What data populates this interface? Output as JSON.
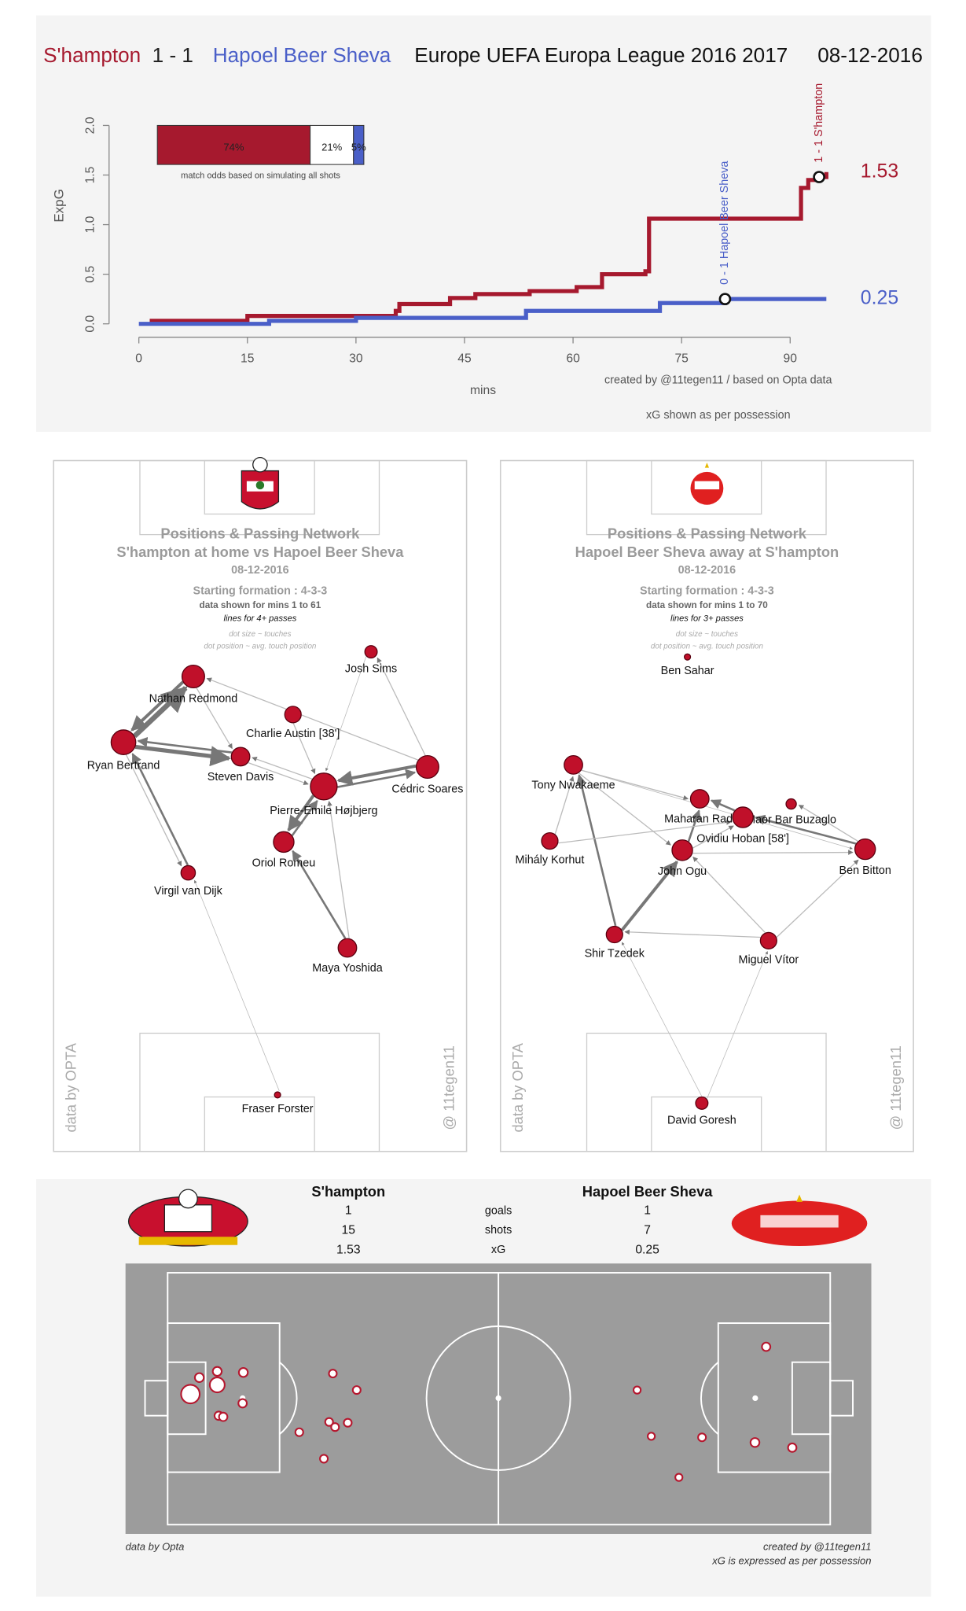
{
  "chart_data": [
    {
      "type": "line",
      "step": true,
      "score": "1  -  1",
      "competition": "Europe UEFA Europa League 2016 2017",
      "date": "08-12-2016",
      "y_label": "ExpG",
      "x_label": "mins",
      "xlim": [
        0,
        90
      ],
      "xticks": [
        0,
        15,
        30,
        45,
        60,
        75,
        90
      ],
      "ylim": [
        0,
        2
      ],
      "yticks": [
        {
          "value": 0,
          "label": "0.0"
        },
        {
          "value": 0.5,
          "label": "0.5"
        },
        {
          "value": 1,
          "label": "1.0"
        },
        {
          "value": 1.5,
          "label": "1.5"
        },
        {
          "value": 2,
          "label": "2.0"
        }
      ],
      "series": [
        {
          "name": "S'hampton",
          "color": "#a6192e",
          "x": [
            1.5,
            15,
            35.5,
            36,
            43,
            46.5,
            54,
            60.5,
            64,
            70,
            70.5,
            91.5,
            92.5,
            94,
            95
          ],
          "values": [
            0.03,
            0.08,
            0.13,
            0.2,
            0.26,
            0.3,
            0.33,
            0.37,
            0.5,
            0.53,
            1.06,
            1.37,
            1.45,
            1.48,
            1.53
          ]
        },
        {
          "name": "Hapoel Beer Sheva",
          "color": "#4a5fc8",
          "x": [
            0,
            18,
            30,
            53.5,
            72,
            81,
            95
          ],
          "values": [
            0,
            0.03,
            0.06,
            0.13,
            0.21,
            0.25,
            0.25
          ]
        }
      ],
      "annotations": [
        {
          "text": "0 - 1 Hapoel Beer Sheva",
          "x": 81,
          "y": 0.25,
          "color": "#4a5fc8"
        },
        {
          "text": "1 - 1 S'hampton",
          "x": 94,
          "y": 1.48,
          "color": "#a6192e"
        }
      ],
      "credit": "created by @11tegen11   /   based on Opta data",
      "note": "xG shown as per possession"
    },
    {
      "type": "bar",
      "stacked": true,
      "xlim": [
        0,
        100
      ],
      "values": [
        74,
        21,
        5
      ],
      "value_labels": [
        "74%",
        "21%",
        "5%"
      ],
      "colors": [
        "#a6192e",
        "#ffffff",
        "#4a5fc8"
      ],
      "caption": "match odds based on simulating all shots"
    },
    {
      "type": "scatter",
      "series": [
        {
          "color": "#b5172e",
          "x": [
            8.7,
            9.9,
            12.3,
            12.3,
            15.8,
            15.7,
            12.5,
            13.1,
            27.8,
            31.0,
            23.3,
            27.3,
            28.1,
            29.8,
            26.6
          ],
          "values": [
            48.3,
            42.2,
            39.9,
            44.9,
            40.3,
            51.7,
            56.3,
            56.7,
            40.7,
            46.8,
            62.4,
            58.6,
            60.5,
            58.9,
            72.2
          ],
          "sizes": [
            0.45,
            0.05,
            0.05,
            0.25,
            0.05,
            0.04,
            0.04,
            0.04,
            0.03,
            0.03,
            0.03,
            0.03,
            0.03,
            0.03,
            0.03
          ]
        },
        {
          "color": "#b5172e",
          "x": [
            85.9,
            68.6,
            70.5,
            77.3,
            84.4,
            89.4,
            74.2
          ],
          "values": [
            30.8,
            46.8,
            63.9,
            64.3,
            66.2,
            68.1,
            79.1
          ],
          "sizes": [
            0.04,
            0.02,
            0.02,
            0.03,
            0.05,
            0.04,
            0.02
          ]
        }
      ]
    }
  ],
  "passing_networks": [
    {
      "title": "Positions & Passing Network",
      "subtitle": "S'hampton at home vs Hapoel Beer Sheva",
      "date": "08-12-2016",
      "formation": "Starting formation : 4-3-3",
      "mins": "data shown for mins 1 to 61",
      "lines": "lines for 4+ passes",
      "legend": [
        "dot size ~ touches",
        "dot position ~ avg. touch position"
      ],
      "source": "data by OPTA",
      "credit": "@ 11tegen11",
      "players": [
        "Nathan Redmond",
        "Ryan Bertrand",
        "Charlie Austin [38']",
        "Steven Davis",
        "Pierre-Emile Højbjerg",
        "Cédric Soares",
        "Josh Sims",
        "Oriol Romeu",
        "Virgil van Dijk",
        "Maya Yoshida",
        "Fraser Forster"
      ]
    },
    {
      "title": "Positions & Passing Network",
      "subtitle": "Hapoel Beer Sheva  away at  S'hampton",
      "date": "08-12-2016",
      "formation": "Starting formation : 4-3-3",
      "mins": "data shown for mins 1 to 70",
      "lines": "lines for 3+ passes",
      "legend": [
        "dot size ~ touches",
        "dot position ~ avg. touch position"
      ],
      "source": "data by OPTA",
      "credit": "@ 11tegen11",
      "players": [
        "Ben Sahar",
        "Tony Nwakaeme",
        "Maharan Radi",
        "Maor Bar Buzaglo",
        "Ovidiu Hoban [58']",
        "John Ogu",
        "Mihály Korhut",
        "Ben Bitton",
        "Shir Tzedek",
        "Miguel Vítor",
        "David Goresh"
      ]
    }
  ],
  "summary": {
    "home": "S'hampton",
    "away": "Hapoel Beer Sheva",
    "rows": [
      {
        "home": "1",
        "label": "goals",
        "away": "1"
      },
      {
        "home": "15",
        "label": "shots",
        "away": "7"
      },
      {
        "home": "1.53",
        "label": "xG",
        "away": "0.25"
      }
    ],
    "source": "data by Opta",
    "credit": "created by @11tegen11",
    "note": "xG is expressed as per possession"
  }
}
